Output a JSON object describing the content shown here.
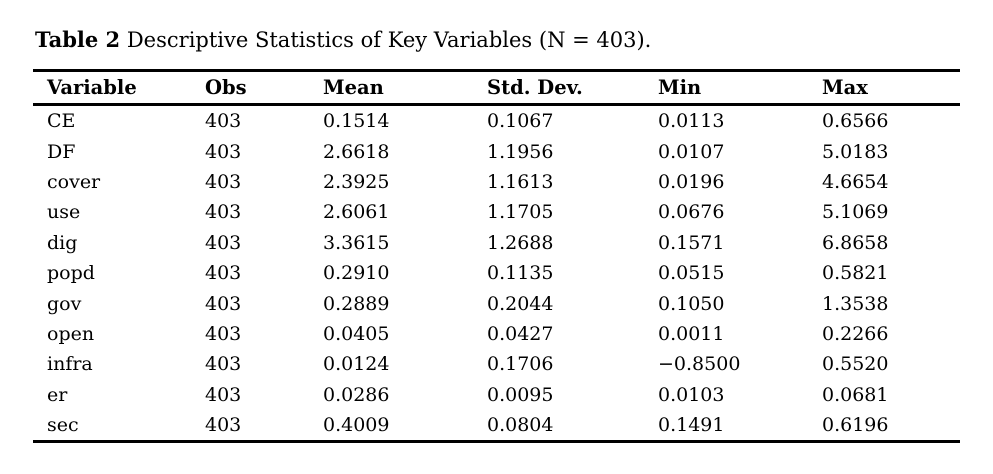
{
  "caption": {
    "label": "Table 2",
    "text": " Descriptive Statistics of Key Variables (N = 403)."
  },
  "table": {
    "columns": [
      "Variable",
      "Obs",
      "Mean",
      "Std. Dev.",
      "Min",
      "Max"
    ],
    "rows": [
      [
        "CE",
        "403",
        "0.1514",
        "0.1067",
        "0.0113",
        "0.6566"
      ],
      [
        "DF",
        "403",
        "2.6618",
        "1.1956",
        "0.0107",
        "5.0183"
      ],
      [
        "cover",
        "403",
        "2.3925",
        "1.1613",
        "0.0196",
        "4.6654"
      ],
      [
        "use",
        "403",
        "2.6061",
        "1.1705",
        "0.0676",
        "5.1069"
      ],
      [
        "dig",
        "403",
        "3.3615",
        "1.2688",
        "0.1571",
        "6.8658"
      ],
      [
        "popd",
        "403",
        "0.2910",
        "0.1135",
        "0.0515",
        "0.5821"
      ],
      [
        "gov",
        "403",
        "0.2889",
        "0.2044",
        "0.1050",
        "1.3538"
      ],
      [
        "open",
        "403",
        "0.0405",
        "0.0427",
        "0.0011",
        "0.2266"
      ],
      [
        "infra",
        "403",
        "0.0124",
        "0.1706",
        "−0.8500",
        "0.5520"
      ],
      [
        "er",
        "403",
        "0.0286",
        "0.0095",
        "0.0103",
        "0.0681"
      ],
      [
        "sec",
        "403",
        "0.4009",
        "0.0804",
        "0.1491",
        "0.6196"
      ]
    ]
  },
  "colors": {
    "text": "#000000",
    "background": "#ffffff",
    "rule": "#000000"
  }
}
